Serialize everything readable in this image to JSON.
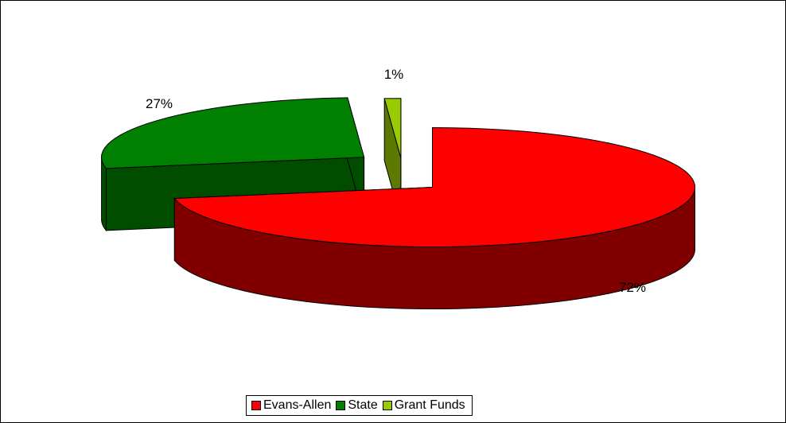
{
  "chart_data": {
    "type": "pie",
    "style": "3d-exploded",
    "categories": [
      "Evans-Allen",
      "State",
      "Grant Funds"
    ],
    "values": [
      72,
      27,
      1
    ],
    "value_labels": [
      "72%",
      "27%",
      "1%"
    ],
    "colors": {
      "Evans-Allen": {
        "top": "#ff0000",
        "side": "#800000"
      },
      "State": {
        "top": "#008000",
        "side": "#004d00"
      },
      "Grant Funds": {
        "top": "#99cc00",
        "side": "#5c7a00"
      }
    },
    "legend_position": "bottom",
    "title": ""
  }
}
